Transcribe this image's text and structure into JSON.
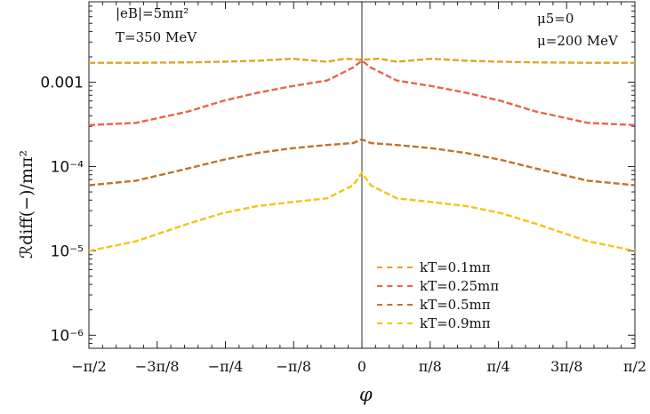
{
  "chart_data": {
    "type": "line",
    "xlabel": "φ",
    "ylabel": "ℛdiff(−)/mπ²",
    "y_scale": "log",
    "xlim": [
      -1.5708,
      1.5708
    ],
    "ylim": [
      7e-07,
      0.009
    ],
    "x_ticks": [
      {
        "value": -1.5708,
        "label": "−π/2"
      },
      {
        "value": -1.1781,
        "label": "−3π/8"
      },
      {
        "value": -0.7854,
        "label": "−π/4"
      },
      {
        "value": -0.3927,
        "label": "−π/8"
      },
      {
        "value": 0,
        "label": "0"
      },
      {
        "value": 0.3927,
        "label": "π/8"
      },
      {
        "value": 0.7854,
        "label": "π/4"
      },
      {
        "value": 1.1781,
        "label": "3π/8"
      },
      {
        "value": 1.5708,
        "label": "π/2"
      }
    ],
    "y_ticks": [
      {
        "value": 1e-06,
        "label": "10⁻⁶"
      },
      {
        "value": 1e-05,
        "label": "10⁻⁵"
      },
      {
        "value": 0.0001,
        "label": "10⁻⁴"
      },
      {
        "value": 0.001,
        "label": "0.001"
      }
    ],
    "annotations": [
      {
        "text": "|eB|=5mπ²",
        "position": "top-left"
      },
      {
        "text": "T=350 MeV",
        "position": "top-left"
      },
      {
        "text": "μ5=0",
        "position": "top-right"
      },
      {
        "text": "μ=200 MeV",
        "position": "top-right"
      }
    ],
    "legend_position": "bottom-right",
    "series": [
      {
        "name": "kT=0.1mπ",
        "color": "#E0A32B",
        "x": [
          -1.5708,
          -1.3,
          -1.0,
          -0.8,
          -0.6,
          -0.4,
          -0.2,
          -0.1,
          0,
          0.1,
          0.2,
          0.4,
          0.6,
          0.8,
          1.0,
          1.3,
          1.5708
        ],
        "y": [
          0.0017,
          0.0017,
          0.00172,
          0.00175,
          0.0018,
          0.0019,
          0.00175,
          0.0019,
          0.00185,
          0.0019,
          0.00175,
          0.0019,
          0.0018,
          0.00175,
          0.00172,
          0.0017,
          0.0017
        ]
      },
      {
        "name": "kT=0.25mπ",
        "color": "#E8654A",
        "x": [
          -1.5708,
          -1.3,
          -1.0,
          -0.8,
          -0.6,
          -0.4,
          -0.2,
          -0.05,
          0,
          0.05,
          0.2,
          0.4,
          0.6,
          0.8,
          1.0,
          1.3,
          1.5708
        ],
        "y": [
          0.00031,
          0.00033,
          0.00045,
          0.0006,
          0.00075,
          0.0009,
          0.00105,
          0.0015,
          0.0018,
          0.0015,
          0.00105,
          0.0009,
          0.00075,
          0.0006,
          0.00045,
          0.00033,
          0.00031
        ]
      },
      {
        "name": "kT=0.5mπ",
        "color": "#C0732C",
        "x": [
          -1.5708,
          -1.3,
          -1.0,
          -0.8,
          -0.6,
          -0.4,
          -0.2,
          -0.05,
          0,
          0.05,
          0.2,
          0.4,
          0.6,
          0.8,
          1.0,
          1.3,
          1.5708
        ],
        "y": [
          6e-05,
          6.8e-05,
          9.5e-05,
          0.00012,
          0.000145,
          0.000165,
          0.00018,
          0.00019,
          0.00021,
          0.00019,
          0.00018,
          0.000165,
          0.000145,
          0.00012,
          9.5e-05,
          6.8e-05,
          6e-05
        ]
      },
      {
        "name": "kT=0.9mπ",
        "color": "#F3C419",
        "x": [
          -1.5708,
          -1.3,
          -1.0,
          -0.8,
          -0.6,
          -0.4,
          -0.2,
          -0.05,
          0,
          0.05,
          0.2,
          0.4,
          0.6,
          0.8,
          1.0,
          1.3,
          1.5708
        ],
        "y": [
          1e-05,
          1.3e-05,
          2.1e-05,
          2.8e-05,
          3.4e-05,
          3.8e-05,
          4.2e-05,
          6e-05,
          8.5e-05,
          6e-05,
          4.2e-05,
          3.8e-05,
          3.4e-05,
          2.8e-05,
          2.1e-05,
          1.3e-05,
          1e-05
        ]
      }
    ]
  }
}
